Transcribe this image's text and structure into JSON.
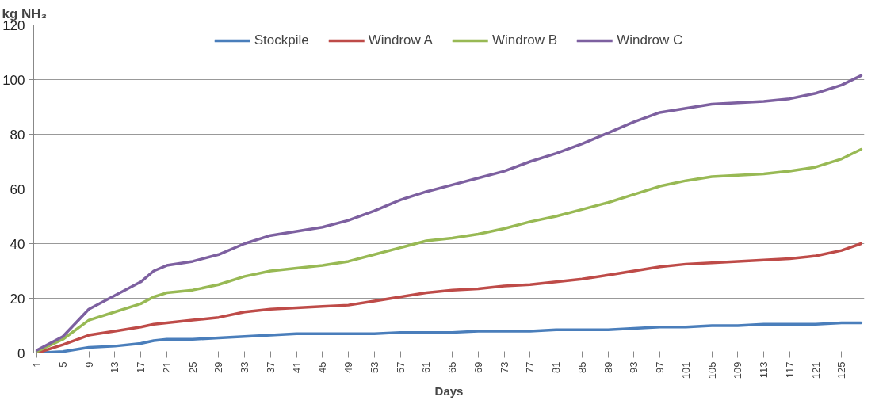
{
  "chart_data": {
    "type": "line",
    "ylabel": "kg NH₃",
    "xlabel": "Days",
    "x": [
      1,
      5,
      9,
      13,
      17,
      19,
      21,
      25,
      29,
      33,
      37,
      41,
      45,
      49,
      53,
      57,
      61,
      65,
      69,
      73,
      77,
      81,
      85,
      89,
      93,
      97,
      101,
      105,
      109,
      113,
      117,
      121,
      125,
      128
    ],
    "xlim": [
      0.5,
      128.5
    ],
    "xticks": [
      1,
      5,
      9,
      13,
      17,
      21,
      25,
      29,
      33,
      37,
      41,
      45,
      49,
      53,
      57,
      61,
      65,
      69,
      73,
      77,
      81,
      85,
      89,
      93,
      97,
      101,
      105,
      109,
      113,
      117,
      121,
      125
    ],
    "ylim": [
      0,
      120
    ],
    "yticks": [
      0,
      20,
      40,
      60,
      80,
      100,
      120
    ],
    "grid": "y",
    "legend": "top",
    "marker": "none",
    "line_style": "solid",
    "series": [
      {
        "name": "Stockpile",
        "color": "#4a7ebb",
        "values": [
          0,
          0.5,
          2,
          2.5,
          3.5,
          4.5,
          5,
          5,
          5.5,
          6,
          6.5,
          7,
          7,
          7,
          7,
          7.5,
          7.5,
          7.5,
          8,
          8,
          8,
          8.5,
          8.5,
          8.5,
          9,
          9.5,
          9.5,
          10,
          10,
          10.5,
          10.5,
          10.5,
          11,
          11
        ]
      },
      {
        "name": "Windrow A",
        "color": "#be4b48",
        "values": [
          0,
          3,
          6.5,
          8,
          9.5,
          10.5,
          11,
          12,
          13,
          15,
          16,
          16.5,
          17,
          17.5,
          19,
          20.5,
          22,
          23,
          23.5,
          24.5,
          25,
          26,
          27,
          28.5,
          30,
          31.5,
          32.5,
          33,
          33.5,
          34,
          34.5,
          35.5,
          37.5,
          40
        ]
      },
      {
        "name": "Windrow B",
        "color": "#98b954",
        "values": [
          0.5,
          5,
          12,
          15,
          18,
          20.5,
          22,
          23,
          25,
          28,
          30,
          31,
          32,
          33.5,
          36,
          38.5,
          41,
          42,
          43.5,
          45.5,
          48,
          50,
          52.5,
          55,
          58,
          61,
          63,
          64.5,
          65,
          65.5,
          66.5,
          68,
          71,
          74.5
        ]
      },
      {
        "name": "Windrow C",
        "color": "#7d60a0",
        "values": [
          1,
          6,
          16,
          21,
          26,
          30,
          32,
          33.5,
          36,
          40,
          43,
          44.5,
          46,
          48.5,
          52,
          56,
          59,
          61.5,
          64,
          66.5,
          70,
          73,
          76.5,
          80.5,
          84.5,
          88,
          89.5,
          91,
          91.5,
          92,
          93,
          95,
          98,
          101.5
        ]
      }
    ]
  }
}
